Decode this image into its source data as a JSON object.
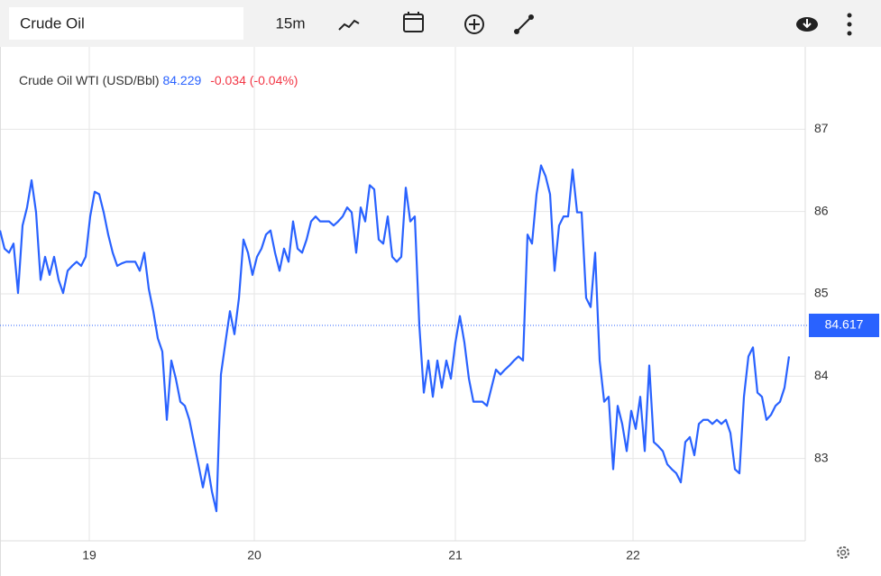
{
  "toolbar": {
    "search": "Crude Oil",
    "interval": "15m"
  },
  "chart_data": {
    "type": "line",
    "series": [
      {
        "name": "Crude Oil WTI (USD/Bbl)",
        "color": "#2962ff",
        "values": [
          85.77,
          85.55,
          85.5,
          85.61,
          85.01,
          85.83,
          86.05,
          86.38,
          85.99,
          85.17,
          85.45,
          85.23,
          85.45,
          85.17,
          85.01,
          85.28,
          85.34,
          85.39,
          85.34,
          85.45,
          85.94,
          86.24,
          86.21,
          85.99,
          85.72,
          85.5,
          85.34,
          85.37,
          85.39,
          85.39,
          85.39,
          85.28,
          85.5,
          85.06,
          84.79,
          84.46,
          84.3,
          83.47,
          84.19,
          83.97,
          83.69,
          83.64,
          83.47,
          83.2,
          82.93,
          82.65,
          82.93,
          82.6,
          82.36,
          84.02,
          84.41,
          84.79,
          84.51,
          84.95,
          85.66,
          85.5,
          85.23,
          85.45,
          85.55,
          85.72,
          85.77,
          85.5,
          85.28,
          85.55,
          85.39,
          85.88,
          85.55,
          85.5,
          85.66,
          85.88,
          85.94,
          85.88,
          85.88,
          85.88,
          85.83,
          85.88,
          85.94,
          86.05,
          85.99,
          85.5,
          86.05,
          85.88,
          86.32,
          86.27,
          85.66,
          85.61,
          85.94,
          85.45,
          85.39,
          85.45,
          86.29,
          85.88,
          85.94,
          84.62,
          83.8,
          84.19,
          83.75,
          84.19,
          83.86,
          84.19,
          83.97,
          84.41,
          84.73,
          84.41,
          83.97,
          83.69,
          83.69,
          83.69,
          83.64,
          83.86,
          84.08,
          84.02,
          84.08,
          84.13,
          84.19,
          84.24,
          84.19,
          85.72,
          85.61,
          86.21,
          86.56,
          86.43,
          86.21,
          85.28,
          85.83,
          85.94,
          85.94,
          86.51,
          85.99,
          85.99,
          84.95,
          84.84,
          85.5,
          84.19,
          83.69,
          83.75,
          82.87,
          83.64,
          83.42,
          83.09,
          83.58,
          83.36,
          83.75,
          83.09,
          84.13,
          83.2,
          83.15,
          83.09,
          82.93,
          82.87,
          82.82,
          82.71,
          83.2,
          83.26,
          83.04,
          83.42,
          83.47,
          83.47,
          83.42,
          83.47,
          83.42,
          83.47,
          83.31,
          82.87,
          82.82,
          83.75,
          84.24,
          84.35,
          83.8,
          83.75,
          83.47,
          83.53,
          83.64,
          83.69,
          83.86,
          84.24
        ]
      }
    ],
    "last": 84.229,
    "change": -0.034,
    "change_percent": -0.04,
    "change_percent_label": "(-0.04%)",
    "price_line": 84.617,
    "xlim": [
      0,
      175
    ],
    "xticks": [
      {
        "value": 19.8,
        "label": "19"
      },
      {
        "value": 56.4,
        "label": "20"
      },
      {
        "value": 101,
        "label": "21"
      },
      {
        "value": 140.4,
        "label": "22"
      }
    ],
    "ylim": [
      82,
      88
    ],
    "yticks": [
      83,
      84,
      85,
      86,
      87
    ],
    "grid": true
  }
}
